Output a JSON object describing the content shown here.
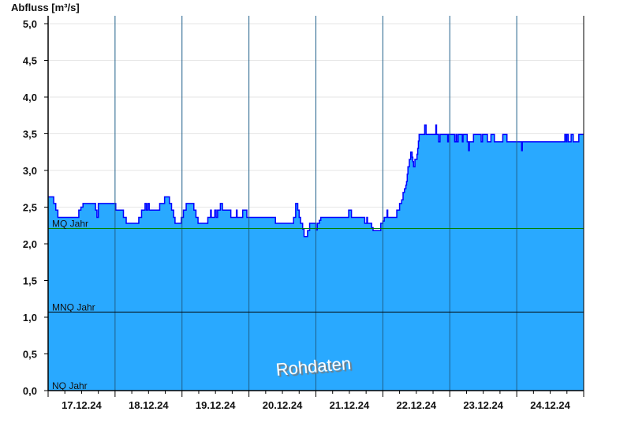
{
  "chart_data": {
    "type": "area",
    "title": "",
    "ylabel": "Abfluss [m³/s]",
    "xlabel": "",
    "ylim": [
      0,
      5
    ],
    "xlim": [
      "2024-12-17T00:00",
      "2024-12-25T00:00"
    ],
    "yticks": [
      "0,0",
      "0,5",
      "1,0",
      "1,5",
      "2,0",
      "2,5",
      "3,0",
      "3,5",
      "4,0",
      "4,5",
      "5,0"
    ],
    "xticks": [
      "17.12.24",
      "18.12.24",
      "19.12.24",
      "20.12.24",
      "21.12.24",
      "22.12.24",
      "23.12.24",
      "24.12.24"
    ],
    "grid": true,
    "step": "after",
    "watermark": "Rohdaten",
    "colors": {
      "fill": "#29a9ff",
      "line": "#0000ff",
      "mq": "#008000",
      "mnq": "#000000",
      "nq": "#000000",
      "grid": "#e6e6e6",
      "daylines": "#1f5f8a"
    },
    "reference_lines": [
      {
        "label": "MQ Jahr",
        "value": 2.21
      },
      {
        "label": "MNQ Jahr",
        "value": 1.07
      },
      {
        "label": "NQ Jahr",
        "value": 0.0
      }
    ],
    "series": [
      {
        "points": [
          [
            "2024-12-17T00:00",
            2.64
          ],
          [
            "2024-12-17T02:00",
            2.55
          ],
          [
            "2024-12-17T02:45",
            2.46
          ],
          [
            "2024-12-17T03:30",
            2.36
          ],
          [
            "2024-12-17T11:00",
            2.46
          ],
          [
            "2024-12-17T11:45",
            2.5
          ],
          [
            "2024-12-17T12:30",
            2.55
          ],
          [
            "2024-12-17T17:00",
            2.46
          ],
          [
            "2024-12-17T17:30",
            2.36
          ],
          [
            "2024-12-17T18:00",
            2.55
          ],
          [
            "2024-12-18T00:15",
            2.46
          ],
          [
            "2024-12-18T03:00",
            2.36
          ],
          [
            "2024-12-18T04:00",
            2.28
          ],
          [
            "2024-12-18T08:30",
            2.36
          ],
          [
            "2024-12-18T09:30",
            2.46
          ],
          [
            "2024-12-18T10:45",
            2.55
          ],
          [
            "2024-12-18T11:15",
            2.46
          ],
          [
            "2024-12-18T11:45",
            2.55
          ],
          [
            "2024-12-18T12:15",
            2.46
          ],
          [
            "2024-12-18T16:00",
            2.55
          ],
          [
            "2024-12-18T17:45",
            2.64
          ],
          [
            "2024-12-18T19:30",
            2.55
          ],
          [
            "2024-12-18T20:15",
            2.46
          ],
          [
            "2024-12-18T21:00",
            2.36
          ],
          [
            "2024-12-18T21:30",
            2.28
          ],
          [
            "2024-12-18T23:45",
            2.36
          ],
          [
            "2024-12-19T00:30",
            2.46
          ],
          [
            "2024-12-19T01:30",
            2.55
          ],
          [
            "2024-12-19T04:15",
            2.46
          ],
          [
            "2024-12-19T05:00",
            2.36
          ],
          [
            "2024-12-19T05:45",
            2.28
          ],
          [
            "2024-12-19T09:15",
            2.36
          ],
          [
            "2024-12-19T10:15",
            2.46
          ],
          [
            "2024-12-19T10:30",
            2.36
          ],
          [
            "2024-12-19T11:45",
            2.46
          ],
          [
            "2024-12-19T12:15",
            2.36
          ],
          [
            "2024-12-19T12:45",
            2.46
          ],
          [
            "2024-12-19T13:45",
            2.55
          ],
          [
            "2024-12-19T14:30",
            2.46
          ],
          [
            "2024-12-19T17:30",
            2.36
          ],
          [
            "2024-12-19T19:30",
            2.46
          ],
          [
            "2024-12-19T19:45",
            2.36
          ],
          [
            "2024-12-19T21:45",
            2.46
          ],
          [
            "2024-12-19T23:15",
            2.36
          ],
          [
            "2024-12-20T09:30",
            2.28
          ],
          [
            "2024-12-20T16:00",
            2.36
          ],
          [
            "2024-12-20T16:45",
            2.55
          ],
          [
            "2024-12-20T17:30",
            2.46
          ],
          [
            "2024-12-20T18:00",
            2.36
          ],
          [
            "2024-12-20T18:30",
            2.28
          ],
          [
            "2024-12-20T19:15",
            2.2
          ],
          [
            "2024-12-20T19:45",
            2.1
          ],
          [
            "2024-12-20T21:00",
            2.18
          ],
          [
            "2024-12-20T21:45",
            2.28
          ],
          [
            "2024-12-21T00:00",
            2.19
          ],
          [
            "2024-12-21T00:30",
            2.28
          ],
          [
            "2024-12-21T01:15",
            2.32
          ],
          [
            "2024-12-21T01:45",
            2.36
          ],
          [
            "2024-12-21T11:45",
            2.46
          ],
          [
            "2024-12-21T12:45",
            2.36
          ],
          [
            "2024-12-21T17:30",
            2.28
          ],
          [
            "2024-12-21T18:15",
            2.36
          ],
          [
            "2024-12-21T18:30",
            2.28
          ],
          [
            "2024-12-21T20:00",
            2.22
          ],
          [
            "2024-12-21T20:30",
            2.18
          ],
          [
            "2024-12-21T23:15",
            2.28
          ],
          [
            "2024-12-22T00:00",
            2.31
          ],
          [
            "2024-12-22T00:30",
            2.36
          ],
          [
            "2024-12-22T01:30",
            2.46
          ],
          [
            "2024-12-22T01:45",
            2.36
          ],
          [
            "2024-12-22T05:00",
            2.46
          ],
          [
            "2024-12-22T06:00",
            2.55
          ],
          [
            "2024-12-22T06:45",
            2.6
          ],
          [
            "2024-12-22T07:15",
            2.7
          ],
          [
            "2024-12-22T07:45",
            2.75
          ],
          [
            "2024-12-22T08:15",
            2.8
          ],
          [
            "2024-12-22T08:30",
            2.85
          ],
          [
            "2024-12-22T08:45",
            2.95
          ],
          [
            "2024-12-22T09:00",
            3.05
          ],
          [
            "2024-12-22T09:30",
            3.15
          ],
          [
            "2024-12-22T10:00",
            3.25
          ],
          [
            "2024-12-22T10:30",
            3.18
          ],
          [
            "2024-12-22T10:45",
            3.12
          ],
          [
            "2024-12-22T11:00",
            3.05
          ],
          [
            "2024-12-22T11:30",
            3.15
          ],
          [
            "2024-12-22T12:15",
            3.22
          ],
          [
            "2024-12-22T12:30",
            3.3
          ],
          [
            "2024-12-22T12:45",
            3.4
          ],
          [
            "2024-12-22T13:00",
            3.49
          ],
          [
            "2024-12-22T15:00",
            3.62
          ],
          [
            "2024-12-22T15:30",
            3.49
          ],
          [
            "2024-12-22T19:00",
            3.62
          ],
          [
            "2024-12-22T19:15",
            3.49
          ],
          [
            "2024-12-22T20:00",
            3.39
          ],
          [
            "2024-12-22T20:30",
            3.49
          ],
          [
            "2024-12-22T23:15",
            3.39
          ],
          [
            "2024-12-22T23:30",
            3.49
          ],
          [
            "2024-12-23T01:45",
            3.39
          ],
          [
            "2024-12-23T02:15",
            3.49
          ],
          [
            "2024-12-23T02:30",
            3.39
          ],
          [
            "2024-12-23T03:00",
            3.49
          ],
          [
            "2024-12-23T04:30",
            3.39
          ],
          [
            "2024-12-23T04:45",
            3.49
          ],
          [
            "2024-12-23T06:15",
            3.39
          ],
          [
            "2024-12-23T06:45",
            3.27
          ],
          [
            "2024-12-23T07:00",
            3.39
          ],
          [
            "2024-12-23T08:30",
            3.49
          ],
          [
            "2024-12-23T11:15",
            3.39
          ],
          [
            "2024-12-23T11:45",
            3.49
          ],
          [
            "2024-12-23T13:30",
            3.39
          ],
          [
            "2024-12-23T14:45",
            3.49
          ],
          [
            "2024-12-23T16:00",
            3.39
          ],
          [
            "2024-12-23T19:00",
            3.49
          ],
          [
            "2024-12-23T20:30",
            3.39
          ],
          [
            "2024-12-24T01:45",
            3.27
          ],
          [
            "2024-12-24T02:00",
            3.39
          ],
          [
            "2024-12-24T17:15",
            3.49
          ],
          [
            "2024-12-24T17:45",
            3.39
          ],
          [
            "2024-12-24T18:00",
            3.49
          ],
          [
            "2024-12-24T18:30",
            3.39
          ],
          [
            "2024-12-24T19:30",
            3.49
          ],
          [
            "2024-12-24T20:15",
            3.39
          ],
          [
            "2024-12-24T22:15",
            3.49
          ]
        ]
      }
    ]
  }
}
